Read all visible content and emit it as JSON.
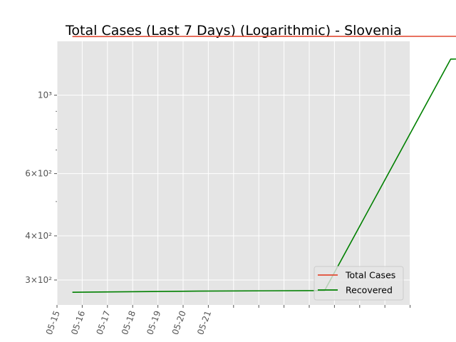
{
  "chart_data": {
    "type": "line",
    "title": "Total Cases (Last 7 Days) (Logarithmic) - Slovenia",
    "xlabel": "",
    "ylabel": "",
    "x": [
      "2020-05-15",
      "2020-05-16",
      "2020-05-17",
      "2020-05-18",
      "2020-05-19",
      "2020-05-20",
      "2020-05-21",
      "2020-05-22"
    ],
    "x_tick_labels": [
      "05-15",
      "05-16",
      "05-17",
      "05-18",
      "05-19",
      "05-20",
      "05-21",
      "",
      "",
      "",
      "",
      "",
      "",
      "",
      ""
    ],
    "y_scale": "log",
    "y_tick_labels": [
      "3×10²",
      "4×10²",
      "6×10²",
      "10³"
    ],
    "ylim": [
      255,
      1420
    ],
    "series": [
      {
        "name": "Total Cases",
        "color": "#E24A33",
        "values": [
          1465,
          1466,
          1466,
          1467,
          1468,
          1469,
          1470,
          1471
        ]
      },
      {
        "name": "Recovered",
        "color": "#008000",
        "values": [
          277,
          279,
          280,
          1265,
          1267,
          1268,
          1269,
          1270
        ]
      }
    ],
    "grid": true,
    "legend_position": "lower-right",
    "background_color": "#E5E5E5"
  }
}
